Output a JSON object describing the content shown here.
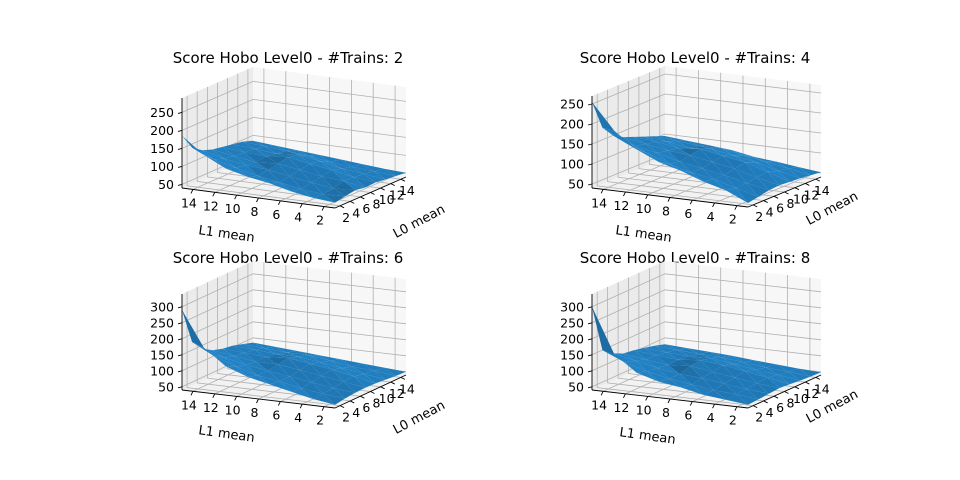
{
  "chart_data": [
    {
      "type": "surface",
      "title": "Score Hobo Level0 - #Trains: 2",
      "xlabel": "L1 mean",
      "ylabel": "L0 mean",
      "x_ticks": [
        "14",
        "12",
        "10",
        "8",
        "6",
        "4",
        "2"
      ],
      "y_ticks": [
        "2",
        "4",
        "6",
        "8",
        "10",
        "12",
        "14"
      ],
      "z_ticks": [
        "50",
        "100",
        "150",
        "200",
        "250"
      ],
      "zlim": [
        40,
        290
      ],
      "color": "#1f77b4",
      "grid_x": [
        1,
        3,
        5,
        7,
        9,
        11,
        13,
        15
      ],
      "grid_y": [
        1,
        3,
        5,
        7,
        9,
        11,
        13,
        15
      ],
      "z": [
        [
          55,
          60,
          70,
          85,
          95,
          110,
          140,
          185
        ],
        [
          60,
          58,
          65,
          75,
          85,
          100,
          115,
          140
        ],
        [
          65,
          62,
          70,
          80,
          90,
          95,
          105,
          120
        ],
        [
          60,
          70,
          75,
          85,
          95,
          90,
          100,
          110
        ],
        [
          62,
          68,
          80,
          90,
          100,
          95,
          98,
          105
        ],
        [
          58,
          65,
          72,
          85,
          95,
          90,
          95,
          100
        ],
        [
          55,
          60,
          65,
          70,
          80,
          85,
          90,
          95
        ],
        [
          52,
          55,
          60,
          65,
          70,
          75,
          80,
          85
        ]
      ]
    },
    {
      "type": "surface",
      "title": "Score Hobo Level0 - #Trains: 4",
      "xlabel": "L1 mean",
      "ylabel": "L0 mean",
      "x_ticks": [
        "14",
        "12",
        "10",
        "8",
        "6",
        "4",
        "2"
      ],
      "y_ticks": [
        "2",
        "4",
        "6",
        "8",
        "10",
        "12",
        "14"
      ],
      "z_ticks": [
        "50",
        "100",
        "150",
        "200",
        "250"
      ],
      "zlim": [
        40,
        270
      ],
      "color": "#1f77b4",
      "grid_x": [
        1,
        3,
        5,
        7,
        9,
        11,
        13,
        15
      ],
      "grid_y": [
        1,
        3,
        5,
        7,
        9,
        11,
        13,
        15
      ],
      "z": [
        [
          50,
          75,
          90,
          110,
          125,
          150,
          190,
          255
        ],
        [
          55,
          70,
          85,
          95,
          110,
          130,
          150,
          180
        ],
        [
          60,
          72,
          85,
          95,
          105,
          120,
          130,
          150
        ],
        [
          62,
          75,
          90,
          100,
          110,
          115,
          125,
          135
        ],
        [
          60,
          78,
          95,
          105,
          115,
          110,
          120,
          125
        ],
        [
          58,
          70,
          85,
          95,
          105,
          100,
          110,
          115
        ],
        [
          55,
          65,
          75,
          85,
          95,
          95,
          100,
          105
        ],
        [
          52,
          58,
          65,
          70,
          80,
          85,
          90,
          95
        ]
      ]
    },
    {
      "type": "surface",
      "title": "Score Hobo Level0 - #Trains: 6",
      "xlabel": "L1 mean",
      "ylabel": "L0 mean",
      "x_ticks": [
        "14",
        "12",
        "10",
        "8",
        "6",
        "4",
        "2"
      ],
      "y_ticks": [
        "2",
        "4",
        "6",
        "8",
        "10",
        "12",
        "14"
      ],
      "z_ticks": [
        "50",
        "100",
        "150",
        "200",
        "250",
        "300"
      ],
      "zlim": [
        40,
        340
      ],
      "color": "#1f77b4",
      "grid_x": [
        1,
        3,
        5,
        7,
        9,
        11,
        13,
        15
      ],
      "grid_y": [
        1,
        3,
        5,
        7,
        9,
        11,
        13,
        15
      ],
      "z": [
        [
          50,
          60,
          75,
          90,
          105,
          130,
          180,
          290
        ],
        [
          55,
          62,
          70,
          85,
          95,
          115,
          140,
          175
        ],
        [
          58,
          65,
          75,
          85,
          95,
          105,
          120,
          140
        ],
        [
          60,
          70,
          80,
          90,
          100,
          100,
          110,
          120
        ],
        [
          58,
          72,
          85,
          95,
          105,
          100,
          105,
          110
        ],
        [
          55,
          65,
          75,
          85,
          95,
          95,
          100,
          105
        ],
        [
          52,
          60,
          65,
          75,
          85,
          85,
          90,
          95
        ],
        [
          50,
          55,
          60,
          65,
          70,
          75,
          80,
          85
        ]
      ]
    },
    {
      "type": "surface",
      "title": "Score Hobo Level0 - #Trains: 8",
      "xlabel": "L1 mean",
      "ylabel": "L0 mean",
      "x_ticks": [
        "14",
        "12",
        "10",
        "8",
        "6",
        "4",
        "2"
      ],
      "y_ticks": [
        "2",
        "4",
        "6",
        "8",
        "10",
        "12",
        "14"
      ],
      "z_ticks": [
        "50",
        "100",
        "150",
        "200",
        "250",
        "300"
      ],
      "zlim": [
        40,
        340
      ],
      "color": "#1f77b4",
      "grid_x": [
        1,
        3,
        5,
        7,
        9,
        11,
        13,
        15
      ],
      "grid_y": [
        1,
        3,
        5,
        7,
        9,
        11,
        13,
        15
      ],
      "z": [
        [
          50,
          58,
          65,
          80,
          90,
          110,
          160,
          300
        ],
        [
          52,
          60,
          65,
          75,
          85,
          100,
          120,
          150
        ],
        [
          55,
          62,
          70,
          80,
          85,
          95,
          110,
          125
        ],
        [
          58,
          65,
          75,
          85,
          95,
          90,
          100,
          110
        ],
        [
          55,
          68,
          80,
          90,
          98,
          92,
          98,
          105
        ],
        [
          52,
          62,
          70,
          80,
          90,
          88,
          92,
          98
        ],
        [
          50,
          57,
          62,
          70,
          78,
          80,
          85,
          90
        ],
        [
          48,
          52,
          57,
          62,
          68,
          72,
          76,
          80
        ]
      ]
    }
  ]
}
